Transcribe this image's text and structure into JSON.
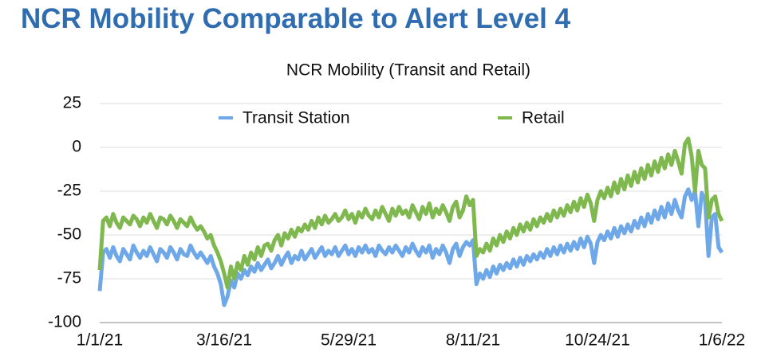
{
  "title": "NCR Mobility Comparable to Alert Level 4",
  "chart_data": {
    "type": "line",
    "title": "NCR Mobility (Transit and Retail)",
    "categories": [
      "1/1/21",
      null,
      null,
      null,
      null,
      null,
      null,
      null,
      null,
      null,
      null,
      null,
      null,
      null,
      null,
      null,
      null,
      null,
      null,
      null,
      null,
      null,
      null,
      null,
      null,
      null,
      null,
      null,
      null,
      null,
      null,
      null,
      null,
      null,
      null,
      null,
      null,
      "3/16/21",
      null,
      null,
      null,
      null,
      null,
      null,
      null,
      null,
      null,
      null,
      null,
      null,
      null,
      null,
      null,
      null,
      null,
      null,
      null,
      null,
      null,
      null,
      null,
      null,
      null,
      null,
      null,
      null,
      null,
      null,
      null,
      null,
      null,
      null,
      null,
      null,
      "5/29/21",
      null,
      null,
      null,
      null,
      null,
      null,
      null,
      null,
      null,
      null,
      null,
      null,
      null,
      null,
      null,
      null,
      null,
      null,
      null,
      null,
      null,
      null,
      null,
      null,
      null,
      null,
      null,
      null,
      null,
      null,
      null,
      null,
      null,
      null,
      null,
      null,
      "8/11/21",
      null,
      null,
      null,
      null,
      null,
      null,
      null,
      null,
      null,
      null,
      null,
      null,
      null,
      null,
      null,
      null,
      null,
      null,
      null,
      null,
      null,
      null,
      null,
      null,
      null,
      null,
      null,
      null,
      null,
      null,
      null,
      null,
      null,
      null,
      null,
      null,
      "10/24/21",
      null,
      null,
      null,
      null,
      null,
      null,
      null,
      null,
      null,
      null,
      null,
      null,
      null,
      null,
      null,
      null,
      null,
      null,
      null,
      null,
      null,
      null,
      null,
      null,
      null,
      null,
      null,
      null,
      null,
      null,
      null,
      null,
      null,
      null,
      null,
      null,
      "1/6/22"
    ],
    "series": [
      {
        "name": "Transit Station",
        "color": "#6fa8e8",
        "values": [
          -82,
          -60,
          -58,
          -63,
          -57,
          -62,
          -65,
          -58,
          -61,
          -64,
          -56,
          -60,
          -63,
          -59,
          -62,
          -57,
          -61,
          -65,
          -58,
          -60,
          -63,
          -57,
          -60,
          -64,
          -58,
          -61,
          -62,
          -56,
          -60,
          -63,
          -60,
          -63,
          -66,
          -62,
          -68,
          -72,
          -78,
          -90,
          -85,
          -76,
          -80,
          -72,
          -75,
          -70,
          -73,
          -68,
          -71,
          -66,
          -70,
          -67,
          -64,
          -69,
          -66,
          -62,
          -67,
          -63,
          -60,
          -66,
          -62,
          -64,
          -59,
          -64,
          -61,
          -58,
          -63,
          -60,
          -57,
          -62,
          -59,
          -61,
          -57,
          -62,
          -59,
          -56,
          -61,
          -58,
          -62,
          -57,
          -60,
          -56,
          -60,
          -58,
          -62,
          -56,
          -59,
          -61,
          -57,
          -60,
          -56,
          -59,
          -62,
          -57,
          -60,
          -55,
          -59,
          -62,
          -57,
          -60,
          -56,
          -63,
          -58,
          -61,
          -56,
          -60,
          -66,
          -58,
          -55,
          -62,
          -57,
          -54,
          -56,
          -53,
          -78,
          -72,
          -75,
          -70,
          -74,
          -68,
          -72,
          -67,
          -70,
          -66,
          -69,
          -64,
          -68,
          -63,
          -67,
          -62,
          -65,
          -61,
          -64,
          -60,
          -63,
          -58,
          -62,
          -57,
          -61,
          -56,
          -60,
          -55,
          -59,
          -54,
          -58,
          -52,
          -57,
          -51,
          -55,
          -66,
          -54,
          -50,
          -53,
          -48,
          -52,
          -46,
          -51,
          -45,
          -49,
          -44,
          -48,
          -42,
          -46,
          -40,
          -45,
          -38,
          -43,
          -36,
          -41,
          -34,
          -40,
          -32,
          -38,
          -30,
          -36,
          -40,
          -28,
          -24,
          -30,
          -25,
          -45,
          -26,
          -30,
          -62,
          -40,
          -38,
          -57,
          -60
        ]
      },
      {
        "name": "Retail",
        "color": "#7fb84e",
        "values": [
          -70,
          -42,
          -40,
          -45,
          -38,
          -43,
          -46,
          -40,
          -42,
          -44,
          -39,
          -41,
          -45,
          -40,
          -43,
          -38,
          -42,
          -46,
          -40,
          -41,
          -44,
          -39,
          -42,
          -46,
          -41,
          -43,
          -45,
          -40,
          -44,
          -47,
          -45,
          -48,
          -52,
          -50,
          -56,
          -60,
          -65,
          -72,
          -80,
          -68,
          -75,
          -66,
          -70,
          -62,
          -67,
          -60,
          -64,
          -57,
          -62,
          -56,
          -55,
          -59,
          -53,
          -50,
          -56,
          -49,
          -52,
          -47,
          -51,
          -46,
          -48,
          -44,
          -47,
          -42,
          -46,
          -40,
          -44,
          -39,
          -43,
          -41,
          -38,
          -42,
          -40,
          -36,
          -41,
          -38,
          -43,
          -37,
          -40,
          -35,
          -39,
          -41,
          -36,
          -40,
          -34,
          -38,
          -42,
          -35,
          -39,
          -34,
          -38,
          -36,
          -40,
          -33,
          -37,
          -41,
          -34,
          -38,
          -32,
          -40,
          -35,
          -38,
          -33,
          -37,
          -42,
          -34,
          -31,
          -40,
          -36,
          -28,
          -33,
          -30,
          -62,
          -58,
          -60,
          -55,
          -59,
          -52,
          -56,
          -50,
          -54,
          -48,
          -52,
          -46,
          -50,
          -44,
          -48,
          -43,
          -47,
          -41,
          -45,
          -40,
          -43,
          -38,
          -42,
          -36,
          -40,
          -35,
          -39,
          -33,
          -37,
          -31,
          -36,
          -29,
          -34,
          -27,
          -32,
          -42,
          -30,
          -25,
          -29,
          -23,
          -28,
          -20,
          -26,
          -18,
          -24,
          -16,
          -22,
          -14,
          -20,
          -12,
          -18,
          -10,
          -16,
          -8,
          -14,
          -6,
          -12,
          -4,
          -10,
          -2,
          -8,
          -15,
          2,
          5,
          -5,
          -25,
          -2,
          -10,
          -12,
          -40,
          -30,
          -28,
          -38,
          -42
        ]
      }
    ],
    "ylim": [
      -100,
      25
    ],
    "yticks": [
      -100,
      -75,
      -50,
      -25,
      0,
      25
    ],
    "grid": true,
    "legend": "top"
  }
}
